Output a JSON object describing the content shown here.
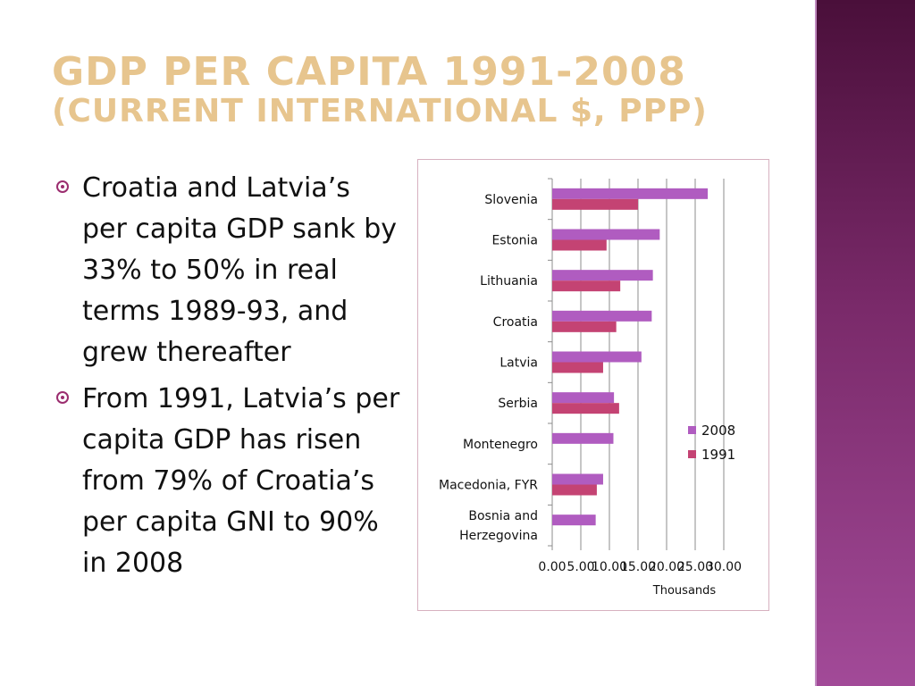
{
  "slide": {
    "title_line1": "GDP per capita 1991-2008",
    "title_line2": "(current international $, PPP)"
  },
  "bullets": [
    "Croatia and Latvia’s per capita GDP sank by 33% to 50% in real terms 1989-93, and grew thereafter",
    "From 1991, Latvia’s per capita GDP has risen from 79% of Croatia’s per capita GNI to 90% in 2008"
  ],
  "colors": {
    "accent_title": "#e7c58e",
    "side_bar": "#7a2a6a",
    "series_2008": "#b05cc0",
    "series_1991": "#c44373",
    "bullet": "#9b2d6f"
  },
  "chart_data": {
    "type": "bar",
    "orientation": "horizontal",
    "categories": [
      "Slovenia",
      "Estonia",
      "Lithuania",
      "Croatia",
      "Latvia",
      "Serbia",
      "Montenegro",
      "Macedonia, FYR",
      "Bosnia and Herzegovina"
    ],
    "category_lines": [
      [
        "Slovenia"
      ],
      [
        "Estonia"
      ],
      [
        "Lithuania"
      ],
      [
        "Croatia"
      ],
      [
        "Latvia"
      ],
      [
        "Serbia"
      ],
      [
        "Montenegro"
      ],
      [
        "Macedonia, FYR"
      ],
      [
        "Bosnia and",
        "Herzegovina"
      ]
    ],
    "series": [
      {
        "name": "2008",
        "values": [
          27.2,
          18.8,
          17.6,
          17.4,
          15.6,
          10.8,
          10.7,
          8.9,
          7.6
        ]
      },
      {
        "name": "1991",
        "values": [
          15.0,
          9.5,
          11.9,
          11.2,
          8.9,
          11.7,
          null,
          7.8,
          null
        ]
      }
    ],
    "x_ticks": [
      "0.00",
      "5.00",
      "10.00",
      "15.00",
      "20.00",
      "25.00",
      "30.00"
    ],
    "xlim": [
      0,
      30
    ],
    "x_unit_label": "Thousands",
    "grid": "vertical",
    "legend_position": "right"
  }
}
